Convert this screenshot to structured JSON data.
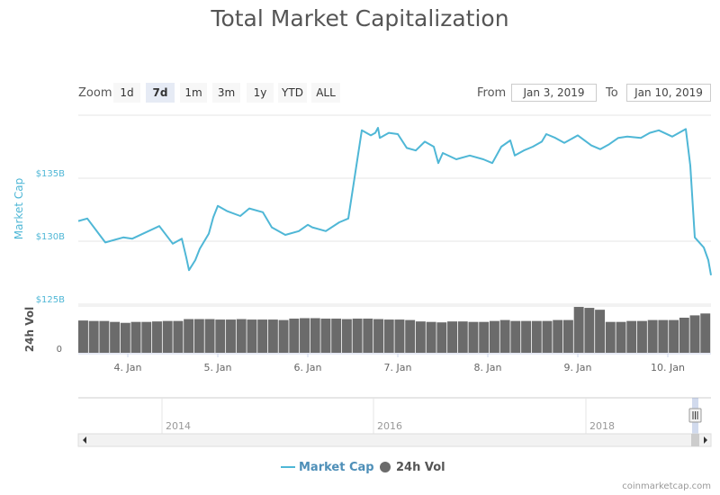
{
  "title": "Total Market Capitalization",
  "zoom": {
    "label": "Zoom",
    "buttons": [
      "1d",
      "7d",
      "1m",
      "3m",
      "1y",
      "YTD",
      "ALL"
    ],
    "active": "7d"
  },
  "range": {
    "from_label": "From",
    "from_value": "Jan 3, 2019",
    "to_label": "To",
    "to_value": "Jan 10, 2019"
  },
  "legend": {
    "market_cap": "Market Cap",
    "vol": "24h Vol"
  },
  "credits": "coinmarketcap.com",
  "colors": {
    "market_cap": "#4fb7d6",
    "volume": "#6b6b6b",
    "axis_text": "#4fb7d6"
  },
  "chart_data": {
    "type": "line",
    "title": "Total Market Capitalization",
    "x_tick_labels": [
      "4. Jan",
      "5. Jan",
      "6. Jan",
      "7. Jan",
      "8. Jan",
      "9. Jan",
      "10. Jan"
    ],
    "x_range_days": [
      3.45,
      10.48
    ],
    "y_axis": {
      "label": "Market Cap",
      "ticks": [
        "$135B",
        "$130B",
        "$125B"
      ],
      "tick_values": [
        135,
        130,
        125
      ],
      "unit": "B USD"
    },
    "volume_axis": {
      "label": "24h Vol",
      "ticks": [
        "0"
      ]
    },
    "series": [
      {
        "name": "Market Cap",
        "x_days": [
          3.45,
          3.55,
          3.75,
          3.95,
          4.05,
          4.2,
          4.35,
          4.5,
          4.6,
          4.65,
          4.68,
          4.75,
          4.8,
          4.9,
          4.95,
          5.0,
          5.1,
          5.25,
          5.35,
          5.5,
          5.6,
          5.75,
          5.9,
          6.0,
          6.05,
          6.2,
          6.35,
          6.45,
          6.6,
          6.7,
          6.75,
          6.78,
          6.8,
          6.9,
          7.0,
          7.1,
          7.2,
          7.3,
          7.4,
          7.45,
          7.5,
          7.65,
          7.8,
          7.95,
          8.05,
          8.15,
          8.25,
          8.3,
          8.4,
          8.5,
          8.6,
          8.65,
          8.75,
          8.85,
          9.0,
          9.15,
          9.25,
          9.35,
          9.45,
          9.55,
          9.7,
          9.8,
          9.9,
          10.05,
          10.2,
          10.25,
          10.3,
          10.35,
          10.4,
          10.45,
          10.48
        ],
        "values": [
          131.6,
          131.8,
          129.9,
          130.3,
          130.2,
          130.7,
          131.2,
          129.8,
          130.2,
          128.7,
          127.7,
          128.5,
          129.4,
          130.6,
          131.9,
          132.8,
          132.4,
          132.0,
          132.6,
          132.3,
          131.1,
          130.5,
          130.8,
          131.3,
          131.1,
          130.8,
          131.5,
          131.8,
          138.8,
          138.4,
          138.6,
          139.0,
          138.2,
          138.6,
          138.5,
          137.4,
          137.2,
          137.9,
          137.5,
          136.2,
          137.0,
          136.5,
          136.8,
          136.5,
          136.2,
          137.5,
          138.0,
          136.8,
          137.2,
          137.5,
          137.9,
          138.5,
          138.2,
          137.8,
          138.4,
          137.6,
          137.3,
          137.7,
          138.2,
          138.3,
          138.2,
          138.6,
          138.8,
          138.3,
          138.9,
          136.0,
          130.3,
          129.9,
          129.5,
          128.5,
          127.3
        ]
      },
      {
        "name": "24h Vol",
        "relative_values": [
          0.69,
          0.68,
          0.68,
          0.66,
          0.64,
          0.66,
          0.66,
          0.67,
          0.68,
          0.68,
          0.72,
          0.72,
          0.72,
          0.71,
          0.71,
          0.72,
          0.71,
          0.71,
          0.71,
          0.7,
          0.73,
          0.74,
          0.74,
          0.73,
          0.73,
          0.72,
          0.73,
          0.73,
          0.72,
          0.71,
          0.71,
          0.7,
          0.67,
          0.66,
          0.65,
          0.67,
          0.67,
          0.66,
          0.66,
          0.68,
          0.7,
          0.68,
          0.68,
          0.68,
          0.68,
          0.7,
          0.7,
          0.98,
          0.96,
          0.92,
          0.66,
          0.66,
          0.68,
          0.68,
          0.7,
          0.7,
          0.7,
          0.75,
          0.8,
          0.84
        ]
      }
    ],
    "grid": true,
    "legend_position": "bottom-center",
    "navigator": {
      "year_labels": [
        "2014",
        "2016",
        "2018"
      ]
    }
  }
}
